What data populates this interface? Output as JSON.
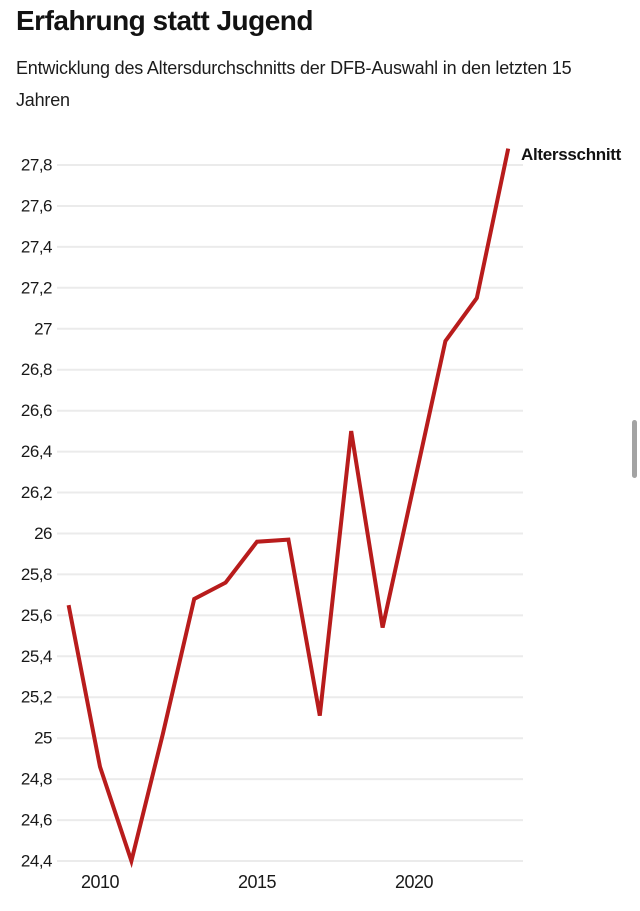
{
  "header": {
    "title": "Erfahrung statt Jugend",
    "subtitle": "Entwicklung des Altersdurchschnitts der DFB-Auswahl in den letzten 15 Jahren"
  },
  "legend": {
    "label": "Altersschnitt"
  },
  "colors": {
    "line": "#b81c1c",
    "grid": "#ebebeb",
    "text": "#191919"
  },
  "chart_data": {
    "type": "line",
    "title": "Erfahrung statt Jugend",
    "subtitle": "Entwicklung des Altersdurchschnitts der DFB-Auswahl in den letzten 15 Jahren",
    "xlabel": "",
    "ylabel": "",
    "grid": "horizontal",
    "legend_position": "top-right",
    "xlim": [
      2009,
      2023
    ],
    "ylim": [
      24.4,
      27.9
    ],
    "x": [
      2009,
      2010,
      2011,
      2012,
      2013,
      2014,
      2015,
      2016,
      2017,
      2018,
      2019,
      2020,
      2021,
      2022,
      2023
    ],
    "series": [
      {
        "name": "Altersschnitt",
        "color": "#b81c1c",
        "values": [
          25.65,
          24.86,
          24.4,
          25.02,
          25.68,
          25.76,
          25.96,
          25.97,
          25.11,
          26.5,
          25.54,
          26.24,
          26.94,
          27.15,
          27.88
        ]
      }
    ],
    "x_tick_values": [
      2010,
      2015,
      2020
    ],
    "x_tick_labels": [
      "2010",
      "2015",
      "2020"
    ],
    "y_tick_values": [
      24.4,
      24.6,
      24.8,
      25,
      25.2,
      25.4,
      25.6,
      25.8,
      26,
      26.2,
      26.4,
      26.6,
      26.8,
      27,
      27.2,
      27.4,
      27.6,
      27.8
    ],
    "y_tick_labels": [
      "24,4",
      "24,6",
      "24,8",
      "25",
      "25,2",
      "25,4",
      "25,6",
      "25,8",
      "26",
      "26,2",
      "26,4",
      "26,6",
      "26,8",
      "27",
      "27,2",
      "27,4",
      "27,6",
      "27,8"
    ]
  }
}
